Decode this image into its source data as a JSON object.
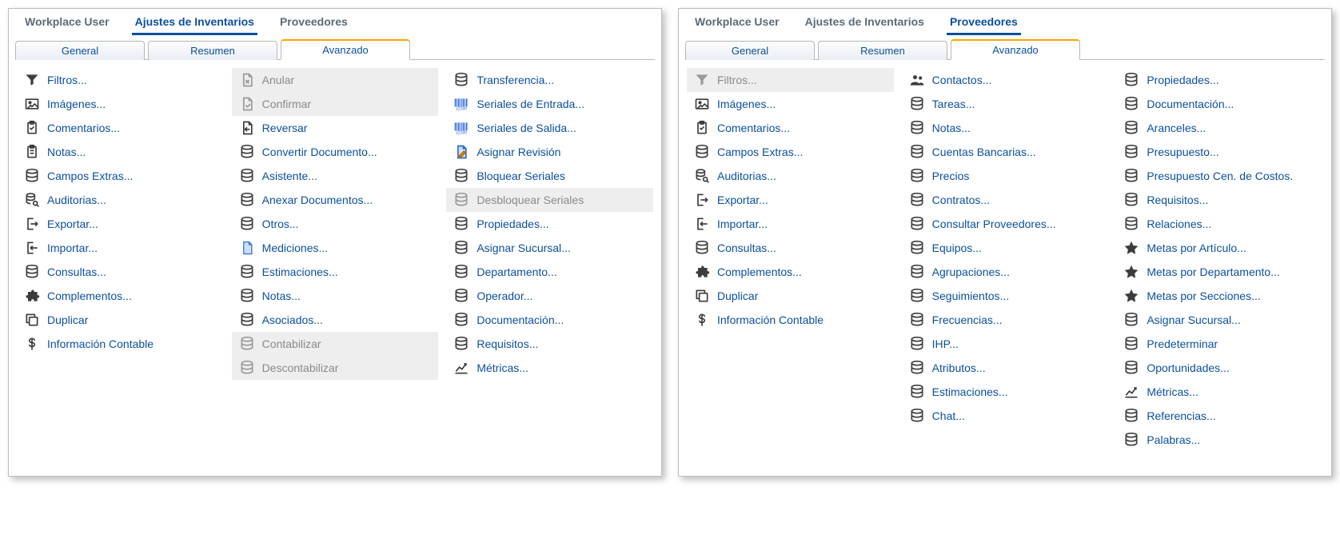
{
  "colors": {
    "link": "#0b4f9e",
    "muted": "#8a8a8a",
    "tab_accent": "#f7a600",
    "panel_border": "#bdbdbd",
    "disabled_bg": "#eeeeee",
    "icon": "#3c3c3c",
    "barcode": "#2e6bd6"
  },
  "left": {
    "topnav": [
      {
        "label": "Workplace User",
        "active": false
      },
      {
        "label": "Ajustes de Inventarios",
        "active": true
      },
      {
        "label": "Proveedores",
        "active": false
      }
    ],
    "subtabs": [
      {
        "label": "General",
        "active": false
      },
      {
        "label": "Resumen",
        "active": false
      },
      {
        "label": "Avanzado",
        "active": true
      }
    ],
    "columns": [
      [
        {
          "icon": "funnel",
          "label": "Filtros...",
          "disabled": false
        },
        {
          "icon": "image",
          "label": "Imágenes...",
          "disabled": false
        },
        {
          "icon": "clipboard",
          "label": "Comentarios...",
          "disabled": false
        },
        {
          "icon": "note",
          "label": "Notas...",
          "disabled": false
        },
        {
          "icon": "db",
          "label": "Campos Extras...",
          "disabled": false
        },
        {
          "icon": "audit",
          "label": "Auditorias...",
          "disabled": false
        },
        {
          "icon": "export",
          "label": "Exportar...",
          "disabled": false
        },
        {
          "icon": "import",
          "label": "Importar...",
          "disabled": false
        },
        {
          "icon": "db",
          "label": "Consultas...",
          "disabled": false
        },
        {
          "icon": "puzzle",
          "label": "Complementos...",
          "disabled": false
        },
        {
          "icon": "duplicate",
          "label": "Duplicar",
          "disabled": false
        },
        {
          "icon": "dollar",
          "label": "Información Contable",
          "disabled": false
        }
      ],
      [
        {
          "icon": "doc-x",
          "label": "Anular",
          "disabled": true
        },
        {
          "icon": "doc-check",
          "label": "Confirmar",
          "disabled": true
        },
        {
          "icon": "doc-back",
          "label": "Reversar",
          "disabled": false
        },
        {
          "icon": "db",
          "label": "Convertir Documento...",
          "disabled": false
        },
        {
          "icon": "db",
          "label": "Asistente...",
          "disabled": false
        },
        {
          "icon": "db",
          "label": "Anexar Documentos...",
          "disabled": false
        },
        {
          "icon": "db",
          "label": "Otros...",
          "disabled": false
        },
        {
          "icon": "page",
          "label": "Mediciones...",
          "disabled": false
        },
        {
          "icon": "db",
          "label": "Estimaciones...",
          "disabled": false
        },
        {
          "icon": "db",
          "label": "Notas...",
          "disabled": false
        },
        {
          "icon": "db",
          "label": "Asociados...",
          "disabled": false
        },
        {
          "icon": "db",
          "label": "Contabilizar",
          "disabled": true
        },
        {
          "icon": "db",
          "label": "Descontabilizar",
          "disabled": true
        }
      ],
      [
        {
          "icon": "db",
          "label": "Transferencia...",
          "disabled": false
        },
        {
          "icon": "barcode",
          "label": "Seriales de Entrada...",
          "disabled": false
        },
        {
          "icon": "barcode",
          "label": "Seriales de Salida...",
          "disabled": false
        },
        {
          "icon": "doc-pen",
          "label": "Asignar Revisión",
          "disabled": false
        },
        {
          "icon": "db",
          "label": "Bloquear Seriales",
          "disabled": false
        },
        {
          "icon": "db",
          "label": "Desbloquear Seriales",
          "disabled": true
        },
        {
          "icon": "db",
          "label": "Propiedades...",
          "disabled": false
        },
        {
          "icon": "db",
          "label": "Asignar Sucursal...",
          "disabled": false
        },
        {
          "icon": "db",
          "label": "Departamento...",
          "disabled": false
        },
        {
          "icon": "db",
          "label": "Operador...",
          "disabled": false
        },
        {
          "icon": "db",
          "label": "Documentación...",
          "disabled": false
        },
        {
          "icon": "db",
          "label": "Requisitos...",
          "disabled": false
        },
        {
          "icon": "metrics",
          "label": "Métricas...",
          "disabled": false
        }
      ]
    ]
  },
  "right": {
    "topnav": [
      {
        "label": "Workplace User",
        "active": false
      },
      {
        "label": "Ajustes de Inventarios",
        "active": false
      },
      {
        "label": "Proveedores",
        "active": true
      }
    ],
    "subtabs": [
      {
        "label": "General",
        "active": false
      },
      {
        "label": "Resumen",
        "active": false
      },
      {
        "label": "Avanzado",
        "active": true
      }
    ],
    "columns": [
      [
        {
          "icon": "funnel",
          "label": "Filtros...",
          "disabled": true
        },
        {
          "icon": "image",
          "label": "Imágenes...",
          "disabled": false
        },
        {
          "icon": "clipboard",
          "label": "Comentarios...",
          "disabled": false
        },
        {
          "icon": "db",
          "label": "Campos Extras...",
          "disabled": false
        },
        {
          "icon": "audit",
          "label": "Auditorias...",
          "disabled": false
        },
        {
          "icon": "export",
          "label": "Exportar...",
          "disabled": false
        },
        {
          "icon": "import",
          "label": "Importar...",
          "disabled": false
        },
        {
          "icon": "db",
          "label": "Consultas...",
          "disabled": false
        },
        {
          "icon": "puzzle",
          "label": "Complementos...",
          "disabled": false
        },
        {
          "icon": "duplicate",
          "label": "Duplicar",
          "disabled": false
        },
        {
          "icon": "dollar",
          "label": "Información Contable",
          "disabled": false
        }
      ],
      [
        {
          "icon": "contacts",
          "label": "Contactos...",
          "disabled": false
        },
        {
          "icon": "db",
          "label": "Tareas...",
          "disabled": false
        },
        {
          "icon": "db",
          "label": "Notas...",
          "disabled": false
        },
        {
          "icon": "db",
          "label": "Cuentas Bancarias...",
          "disabled": false
        },
        {
          "icon": "db",
          "label": "Precios",
          "disabled": false
        },
        {
          "icon": "db",
          "label": "Contratos...",
          "disabled": false
        },
        {
          "icon": "db",
          "label": "Consultar Proveedores...",
          "disabled": false
        },
        {
          "icon": "db",
          "label": "Equipos...",
          "disabled": false
        },
        {
          "icon": "db",
          "label": "Agrupaciones...",
          "disabled": false
        },
        {
          "icon": "db",
          "label": "Seguimientos...",
          "disabled": false
        },
        {
          "icon": "db",
          "label": "Frecuencias...",
          "disabled": false
        },
        {
          "icon": "db",
          "label": "IHP...",
          "disabled": false
        },
        {
          "icon": "db",
          "label": "Atributos...",
          "disabled": false
        },
        {
          "icon": "db",
          "label": "Estimaciones...",
          "disabled": false
        },
        {
          "icon": "db",
          "label": "Chat...",
          "disabled": false
        }
      ],
      [
        {
          "icon": "db",
          "label": "Propiedades...",
          "disabled": false
        },
        {
          "icon": "db",
          "label": "Documentación...",
          "disabled": false
        },
        {
          "icon": "db",
          "label": "Aranceles...",
          "disabled": false
        },
        {
          "icon": "db",
          "label": "Presupuesto...",
          "disabled": false
        },
        {
          "icon": "db",
          "label": "Presupuesto Cen. de Costos.",
          "disabled": false
        },
        {
          "icon": "db",
          "label": "Requisitos...",
          "disabled": false
        },
        {
          "icon": "db",
          "label": "Relaciones...",
          "disabled": false
        },
        {
          "icon": "star",
          "label": "Metas por Artículo...",
          "disabled": false
        },
        {
          "icon": "star",
          "label": "Metas por Departamento...",
          "disabled": false
        },
        {
          "icon": "star",
          "label": "Metas por Secciones...",
          "disabled": false
        },
        {
          "icon": "db",
          "label": "Asignar Sucursal...",
          "disabled": false
        },
        {
          "icon": "db",
          "label": "Predeterminar",
          "disabled": false
        },
        {
          "icon": "db",
          "label": "Oportunidades...",
          "disabled": false
        },
        {
          "icon": "metrics",
          "label": "Métricas...",
          "disabled": false
        },
        {
          "icon": "db",
          "label": "Referencias...",
          "disabled": false
        },
        {
          "icon": "db",
          "label": "Palabras...",
          "disabled": false
        }
      ]
    ]
  }
}
